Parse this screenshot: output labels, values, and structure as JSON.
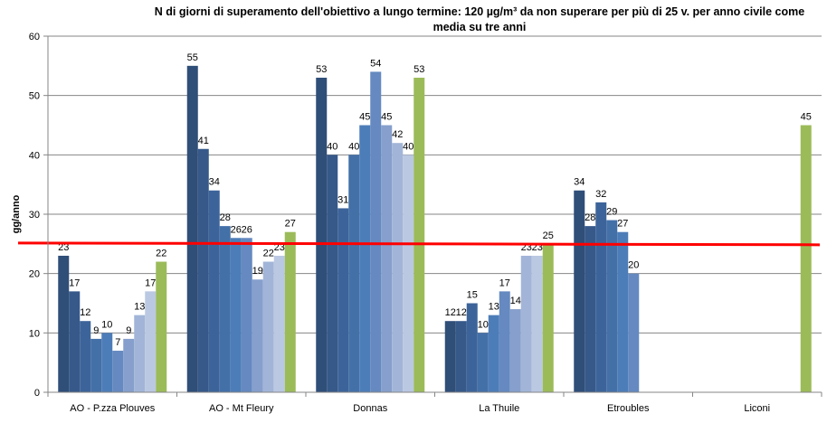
{
  "chart_data": {
    "type": "bar",
    "title_line1": "N di giorni di superamento dell'obiettivo a lungo termine: 120 µg/m³ da non superare per più di 25 v. per anno civile come",
    "title_line2": "media su tre anni",
    "ylabel": "gg/anno",
    "xlabel": "",
    "ylim": [
      0,
      60
    ],
    "yticks": [
      0,
      10,
      20,
      30,
      40,
      50,
      60
    ],
    "grid": true,
    "categories": [
      "AO - P.zza Plouves",
      "AO - Mt Fleury",
      "Donnas",
      "La Thuile",
      "Etroubles",
      "Liconi"
    ],
    "series_values": [
      [
        23,
        55,
        53,
        12,
        34,
        null
      ],
      [
        17,
        41,
        40,
        12,
        28,
        null
      ],
      [
        12,
        34,
        31,
        15,
        32,
        null
      ],
      [
        9,
        28,
        40,
        10,
        29,
        null
      ],
      [
        10,
        26,
        45,
        13,
        27,
        null
      ],
      [
        7,
        26,
        54,
        17,
        20,
        null
      ],
      [
        9,
        19,
        45,
        14,
        null,
        null
      ],
      [
        13,
        22,
        42,
        23,
        null,
        null
      ],
      [
        17,
        23,
        40,
        23,
        null,
        null
      ],
      [
        22,
        27,
        53,
        25,
        null,
        45
      ]
    ],
    "series_colors": [
      "#2f4e78",
      "#36598a",
      "#3d649a",
      "#4470a8",
      "#4d7db8",
      "#6589c0",
      "#869fcc",
      "#a2b5d8",
      "#bac8e2",
      "#9bbb59"
    ],
    "reference_line": {
      "value": 25,
      "color": "#ff0000"
    },
    "data_labels": true
  }
}
